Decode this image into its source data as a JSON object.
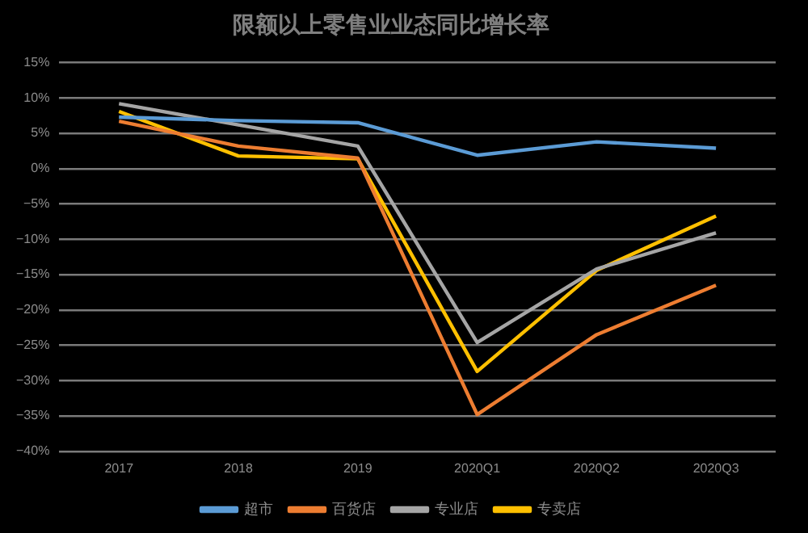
{
  "chart_data": {
    "type": "line",
    "title": "限额以上零售业业态同比增长率",
    "categories": [
      "2017",
      "2018",
      "2019",
      "2020Q1",
      "2020Q2",
      "2020Q3"
    ],
    "series": [
      {
        "name": "超市",
        "color": "#5b9bd5",
        "values": [
          7.3,
          6.8,
          6.5,
          1.9,
          3.8,
          2.9
        ]
      },
      {
        "name": "百货店",
        "color": "#ed7d31",
        "values": [
          6.7,
          3.2,
          1.5,
          -34.8,
          -23.5,
          -16.5
        ]
      },
      {
        "name": "专业店",
        "color": "#a5a5a5",
        "values": [
          9.2,
          6.2,
          3.2,
          -24.6,
          -14.2,
          -9.1
        ]
      },
      {
        "name": "专卖店",
        "color": "#ffc000",
        "values": [
          8.1,
          1.8,
          1.4,
          -28.7,
          -14.4,
          -6.7
        ]
      }
    ],
    "ylim": [
      -40,
      15
    ],
    "yticks": [
      {
        "value": 15,
        "label": "15%"
      },
      {
        "value": 10,
        "label": "10%"
      },
      {
        "value": 5,
        "label": "5%"
      },
      {
        "value": 0,
        "label": "0%"
      },
      {
        "value": -5,
        "label": "−5%"
      },
      {
        "value": -10,
        "label": "−10%"
      },
      {
        "value": -15,
        "label": "−15%"
      },
      {
        "value": -20,
        "label": "−20%"
      },
      {
        "value": -25,
        "label": "−25%"
      },
      {
        "value": -30,
        "label": "−30%"
      },
      {
        "value": -35,
        "label": "−35%"
      },
      {
        "value": -40,
        "label": "−40%"
      }
    ],
    "grid": "y",
    "legend": "bottom",
    "marker": "none",
    "line_style": "solid"
  }
}
